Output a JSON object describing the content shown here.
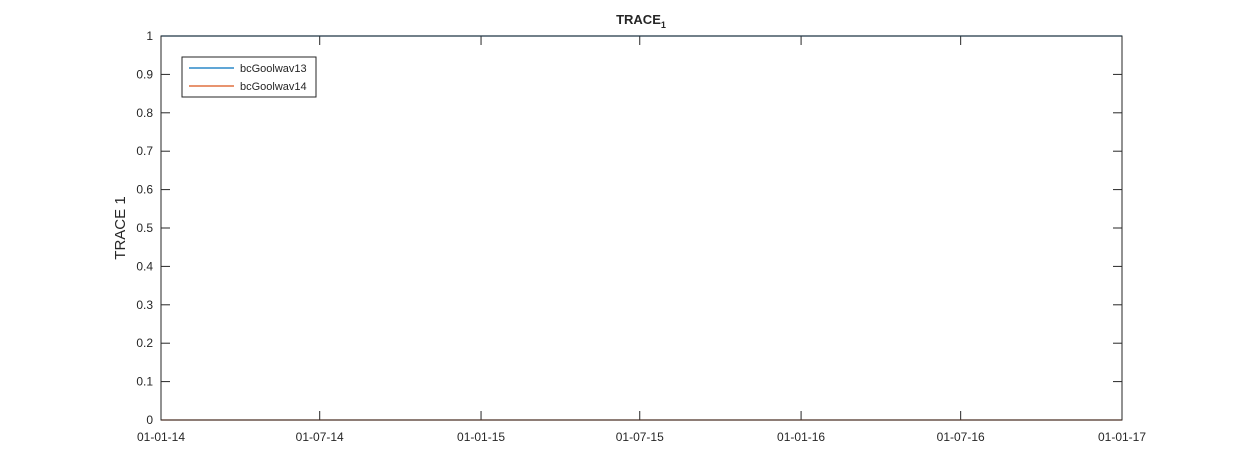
{
  "chart_data": {
    "type": "line",
    "title": "TRACE",
    "title_subscript": "1",
    "ylabel": "TRACE 1",
    "xlabel": "",
    "x_ticks": [
      "01-01-14",
      "01-07-14",
      "01-01-15",
      "01-07-15",
      "01-01-16",
      "01-07-16",
      "01-01-17"
    ],
    "y_ticks": [
      "0",
      "0.1",
      "0.2",
      "0.3",
      "0.4",
      "0.5",
      "0.6",
      "0.7",
      "0.8",
      "0.9",
      "1"
    ],
    "xlim": [
      "2014-01-01",
      "2017-01-01"
    ],
    "ylim": [
      0,
      1
    ],
    "grid": false,
    "legend_position": "top-left",
    "series": [
      {
        "name": "bcGoolwav13",
        "color": "#0072BD",
        "x": [
          "2014-01-01",
          "2017-01-01"
        ],
        "y": [
          1,
          1
        ]
      },
      {
        "name": "bcGoolwav14",
        "color": "#D95319",
        "x": [
          "2014-01-01",
          "2017-01-01"
        ],
        "y": [
          0,
          0
        ]
      }
    ]
  }
}
